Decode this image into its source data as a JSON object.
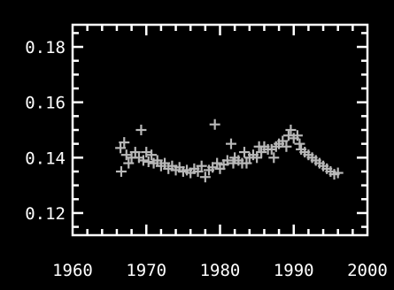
{
  "chart_data": {
    "type": "scatter",
    "title": "",
    "xlabel": "",
    "ylabel": "",
    "xlim": [
      1960,
      2000
    ],
    "ylim": [
      0.112,
      0.188
    ],
    "x_ticks": [
      "1960",
      "1970",
      "1980",
      "1990",
      "2000"
    ],
    "y_ticks": [
      "0.12",
      "0.14",
      "0.16",
      "0.18"
    ],
    "grid": false,
    "marker": "plus",
    "colors": {
      "background": "#000000",
      "axes": "#ffffff",
      "points": "#b8b8b8"
    },
    "series": [
      {
        "points": [
          [
            1966.5,
            0.1435
          ],
          [
            1966.6,
            0.135
          ],
          [
            1967.0,
            0.1455
          ],
          [
            1967.3,
            0.141
          ],
          [
            1967.6,
            0.138
          ],
          [
            1968.0,
            0.14
          ],
          [
            1968.5,
            0.142
          ],
          [
            1969.0,
            0.14
          ],
          [
            1969.3,
            0.15
          ],
          [
            1969.6,
            0.139
          ],
          [
            1970.0,
            0.142
          ],
          [
            1970.3,
            0.1385
          ],
          [
            1970.7,
            0.141
          ],
          [
            1971.0,
            0.138
          ],
          [
            1971.5,
            0.139
          ],
          [
            1972.0,
            0.137
          ],
          [
            1972.5,
            0.138
          ],
          [
            1973.0,
            0.136
          ],
          [
            1973.5,
            0.137
          ],
          [
            1974.0,
            0.1355
          ],
          [
            1974.5,
            0.1365
          ],
          [
            1975.0,
            0.135
          ],
          [
            1975.5,
            0.1355
          ],
          [
            1976.0,
            0.1345
          ],
          [
            1976.5,
            0.136
          ],
          [
            1977.0,
            0.135
          ],
          [
            1977.5,
            0.137
          ],
          [
            1978.0,
            0.133
          ],
          [
            1978.5,
            0.1355
          ],
          [
            1979.0,
            0.1365
          ],
          [
            1979.3,
            0.152
          ],
          [
            1979.6,
            0.138
          ],
          [
            1980.0,
            0.136
          ],
          [
            1980.5,
            0.1375
          ],
          [
            1981.0,
            0.139
          ],
          [
            1981.5,
            0.145
          ],
          [
            1981.8,
            0.138
          ],
          [
            1982.0,
            0.14
          ],
          [
            1982.5,
            0.139
          ],
          [
            1983.0,
            0.138
          ],
          [
            1983.3,
            0.142
          ],
          [
            1983.6,
            0.138
          ],
          [
            1984.0,
            0.14
          ],
          [
            1984.5,
            0.141
          ],
          [
            1985.0,
            0.14
          ],
          [
            1985.3,
            0.144
          ],
          [
            1985.6,
            0.142
          ],
          [
            1986.0,
            0.144
          ],
          [
            1986.5,
            0.143
          ],
          [
            1987.0,
            0.143
          ],
          [
            1987.3,
            0.14
          ],
          [
            1987.6,
            0.144
          ],
          [
            1988.0,
            0.145
          ],
          [
            1988.5,
            0.146
          ],
          [
            1989.0,
            0.144
          ],
          [
            1989.3,
            0.148
          ],
          [
            1989.6,
            0.15
          ],
          [
            1990.0,
            0.147
          ],
          [
            1990.5,
            0.148
          ],
          [
            1990.8,
            0.145
          ],
          [
            1991.0,
            0.143
          ],
          [
            1991.5,
            0.142
          ],
          [
            1992.0,
            0.141
          ],
          [
            1992.5,
            0.14
          ],
          [
            1993.0,
            0.139
          ],
          [
            1993.5,
            0.138
          ],
          [
            1994.0,
            0.137
          ],
          [
            1994.5,
            0.136
          ],
          [
            1995.0,
            0.135
          ],
          [
            1995.5,
            0.134
          ],
          [
            1996.0,
            0.1345
          ]
        ]
      }
    ]
  }
}
